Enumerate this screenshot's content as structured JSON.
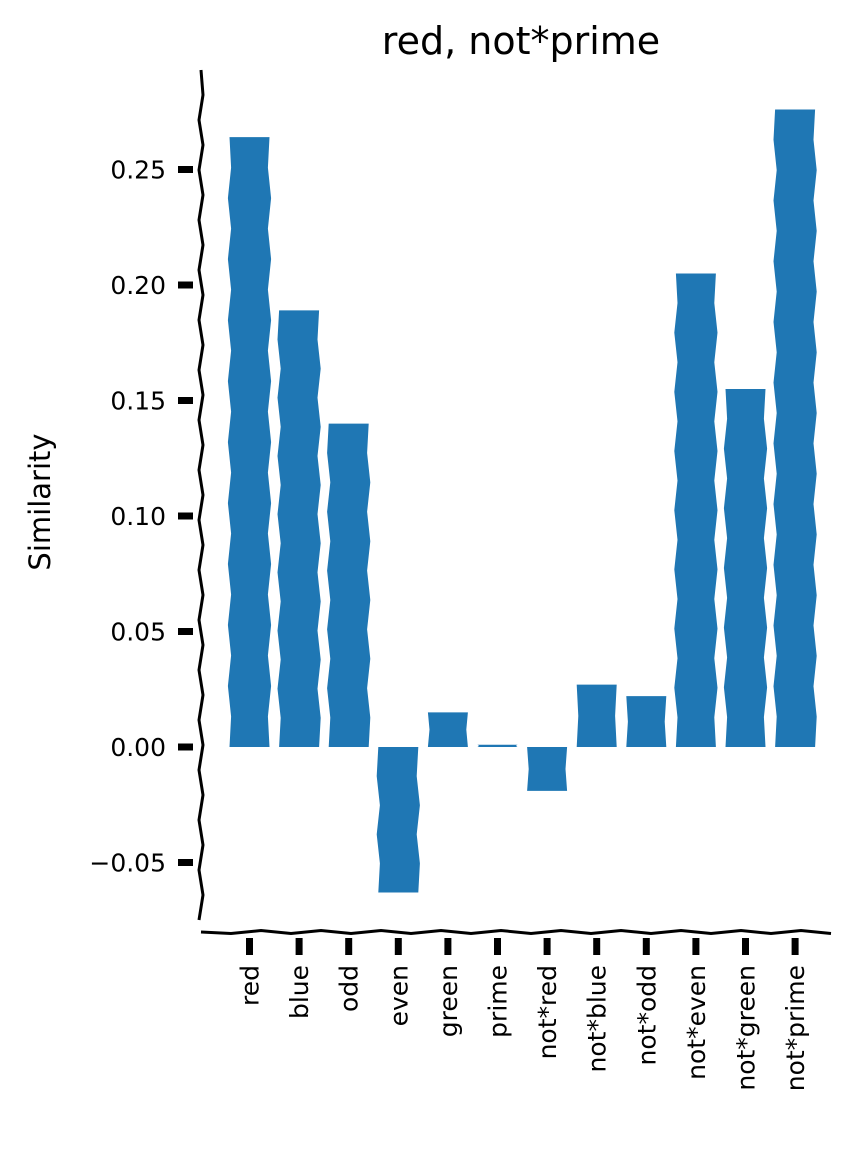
{
  "chart_data": {
    "type": "bar",
    "title": "red, not*prime",
    "xlabel": "",
    "ylabel": "Similarity",
    "categories": [
      "red",
      "blue",
      "odd",
      "even",
      "green",
      "prime",
      "not*red",
      "not*blue",
      "not*odd",
      "not*even",
      "not*green",
      "not*prime"
    ],
    "values": [
      0.264,
      0.189,
      0.14,
      -0.063,
      0.015,
      0.001,
      -0.019,
      0.027,
      0.022,
      0.205,
      0.155,
      0.276
    ],
    "yticks": [
      -0.05,
      0.0,
      0.05,
      0.1,
      0.15,
      0.2,
      0.25
    ],
    "ytick_labels": [
      "−0.05",
      "0.00",
      "0.05",
      "0.10",
      "0.15",
      "0.20",
      "0.25"
    ],
    "ylim": [
      -0.08,
      0.29
    ],
    "bar_color": "#1f77b4",
    "grid": false,
    "style": "hand-drawn (xkcd)"
  }
}
